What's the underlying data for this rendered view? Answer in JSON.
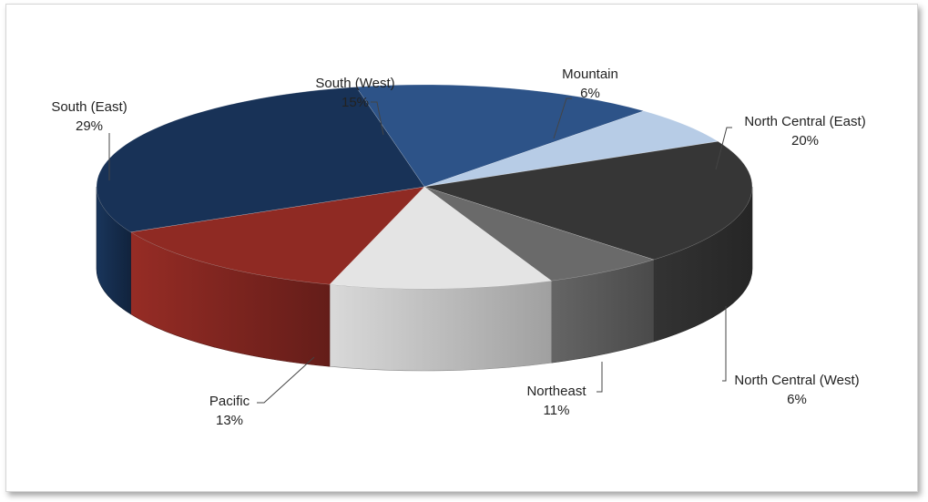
{
  "chart_data": {
    "type": "pie",
    "style": "3d",
    "legend": "none",
    "slices": [
      {
        "label": "South (West)",
        "value": 15,
        "value_label": "15%",
        "color": "#2d5388"
      },
      {
        "label": "Mountain",
        "value": 6,
        "value_label": "6%",
        "color": "#b7cce6"
      },
      {
        "label": "North Central (East)",
        "value": 20,
        "value_label": "20%",
        "color": "#363636"
      },
      {
        "label": "North Central (West)",
        "value": 6,
        "value_label": "6%",
        "color": "#6a6a6a"
      },
      {
        "label": "Northeast",
        "value": 11,
        "value_label": "11%",
        "color": "#e4e4e4"
      },
      {
        "label": "Pacific",
        "value": 13,
        "value_label": "13%",
        "color": "#8f2a23"
      },
      {
        "label": "South (East)",
        "value": 29,
        "value_label": "29%",
        "color": "#183257"
      }
    ]
  }
}
